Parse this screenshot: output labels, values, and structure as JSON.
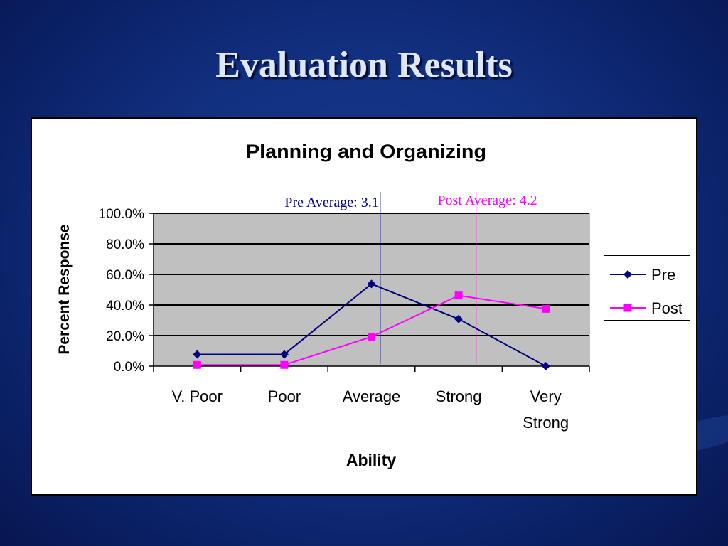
{
  "slide": {
    "title": "Evaluation Results"
  },
  "chart_data": {
    "type": "line",
    "title": "Planning and Organizing",
    "xlabel": "Ability",
    "ylabel": "Percent Response",
    "categories": [
      [
        "V. Poor"
      ],
      [
        "Poor"
      ],
      [
        "Average"
      ],
      [
        "Strong"
      ],
      [
        "Very",
        "Strong"
      ]
    ],
    "yticks": [
      "0.0%",
      "20.0%",
      "40.0%",
      "60.0%",
      "80.0%",
      "100.0%"
    ],
    "ylim": [
      0,
      100
    ],
    "grid": true,
    "legend_position": "right",
    "series": [
      {
        "name": "Pre",
        "color": "#000080",
        "marker": "diamond",
        "values": [
          7.7,
          7.7,
          53.8,
          30.8,
          0
        ]
      },
      {
        "name": "Post",
        "color": "#ff00ff",
        "marker": "square",
        "values": [
          0.8,
          0.8,
          19.2,
          46.2,
          37.5
        ]
      }
    ],
    "annotations": [
      {
        "text": "Pre Average: 3.1",
        "x": 3.1,
        "color": "#000080"
      },
      {
        "text": "Post Average: 4.2",
        "x": 4.2,
        "color": "#ff00ff"
      }
    ]
  }
}
